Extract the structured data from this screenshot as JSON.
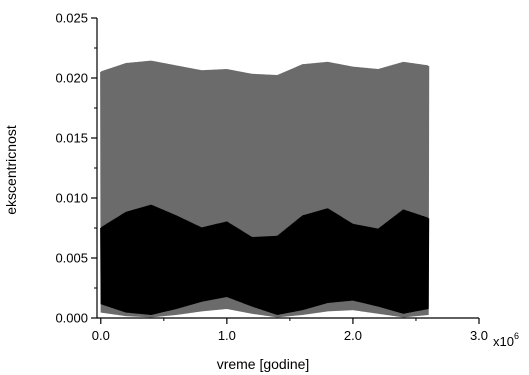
{
  "chart_data": {
    "type": "area",
    "xlabel": "vreme [godine]",
    "ylabel": "ekscentricnost",
    "x_multiplier_label": "x10",
    "x_multiplier_exponent": "6",
    "xlim": [
      -0.03,
      3.0
    ],
    "ylim": [
      0.0,
      0.025
    ],
    "x_ticks": [
      {
        "value": 0.0,
        "label": "0.0"
      },
      {
        "value": 1.0,
        "label": "1.0"
      },
      {
        "value": 2.0,
        "label": "2.0"
      },
      {
        "value": 3.0,
        "label": "3.0"
      }
    ],
    "y_ticks": [
      {
        "value": 0.0,
        "label": "0.000"
      },
      {
        "value": 0.005,
        "label": "0.005"
      },
      {
        "value": 0.01,
        "label": "0.010"
      },
      {
        "value": 0.015,
        "label": "0.015"
      },
      {
        "value": 0.02,
        "label": "0.020"
      },
      {
        "value": 0.025,
        "label": "0.025"
      }
    ],
    "grid": false,
    "series": [
      {
        "color": "#6b6b6b",
        "x": [
          0.0,
          0.2,
          0.4,
          0.6,
          0.8,
          1.0,
          1.2,
          1.4,
          1.6,
          1.8,
          2.0,
          2.2,
          2.4,
          2.6
        ],
        "y_max": [
          0.0205,
          0.0212,
          0.0214,
          0.021,
          0.0206,
          0.0207,
          0.0203,
          0.0202,
          0.0211,
          0.0213,
          0.0209,
          0.0207,
          0.0213,
          0.021
        ],
        "y_min": [
          0.0005,
          0.0002,
          0.0001,
          0.0003,
          0.0006,
          0.0008,
          0.0004,
          0.0001,
          0.0003,
          0.0006,
          0.0007,
          0.0004,
          0.0001,
          0.0003
        ]
      },
      {
        "color": "#000000",
        "x": [
          0.0,
          0.2,
          0.4,
          0.6,
          0.8,
          1.0,
          1.2,
          1.4,
          1.6,
          1.8,
          2.0,
          2.2,
          2.4,
          2.6
        ],
        "y_max": [
          0.0075,
          0.0088,
          0.0094,
          0.0085,
          0.0075,
          0.008,
          0.0067,
          0.0068,
          0.0085,
          0.0091,
          0.0078,
          0.0074,
          0.009,
          0.0083
        ],
        "y_min": [
          0.0012,
          0.0005,
          0.0003,
          0.0008,
          0.0014,
          0.0018,
          0.001,
          0.0003,
          0.0007,
          0.0013,
          0.0015,
          0.001,
          0.0004,
          0.0008
        ]
      }
    ]
  }
}
